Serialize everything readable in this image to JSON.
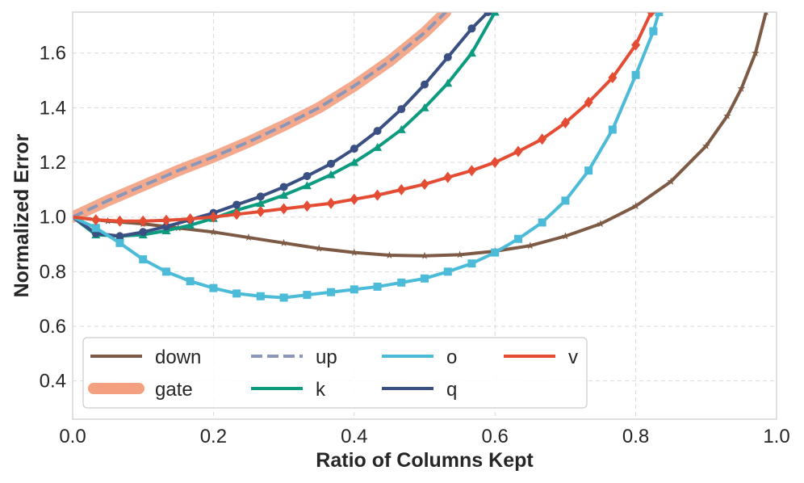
{
  "chart_data": {
    "type": "line",
    "title": "",
    "xlabel": "Ratio of Columns Kept",
    "ylabel": "Normalized Error",
    "xlim": [
      0.0,
      1.0
    ],
    "ylim": [
      0.26,
      1.75
    ],
    "xticks": [
      0.0,
      0.2,
      0.4,
      0.6,
      0.8,
      1.0
    ],
    "xtick_labels": [
      "0.0",
      "0.2",
      "0.4",
      "0.6",
      "0.8",
      "1.0"
    ],
    "yticks": [
      0.4,
      0.6,
      0.8,
      1.0,
      1.2,
      1.4,
      1.6
    ],
    "ytick_labels": [
      "0.4",
      "0.6",
      "0.8",
      "1.0",
      "1.2",
      "1.4",
      "1.6"
    ],
    "grid": true,
    "legend_position": "lower-left",
    "series": [
      {
        "name": "down",
        "color": "#7d5a45",
        "marker": "star",
        "style": "solid",
        "x": [
          0,
          0.05,
          0.1,
          0.15,
          0.2,
          0.25,
          0.3,
          0.35,
          0.4,
          0.45,
          0.5,
          0.55,
          0.6,
          0.65,
          0.7,
          0.75,
          0.8,
          0.85,
          0.9,
          0.93,
          0.95,
          0.97,
          0.985
        ],
        "y": [
          1.0,
          0.985,
          0.975,
          0.96,
          0.945,
          0.925,
          0.905,
          0.885,
          0.87,
          0.86,
          0.858,
          0.862,
          0.875,
          0.895,
          0.93,
          0.975,
          1.04,
          1.13,
          1.26,
          1.37,
          1.47,
          1.6,
          1.75
        ]
      },
      {
        "name": "gate",
        "color": "#f4a080",
        "marker": "none",
        "style": "thick",
        "x": [
          0,
          0.05,
          0.1,
          0.15,
          0.2,
          0.25,
          0.3,
          0.35,
          0.4,
          0.45,
          0.5,
          0.53
        ],
        "y": [
          1.0,
          1.06,
          1.115,
          1.17,
          1.22,
          1.275,
          1.335,
          1.4,
          1.48,
          1.57,
          1.675,
          1.75
        ]
      },
      {
        "name": "up",
        "color": "#8b97b8",
        "marker": "none",
        "style": "dashed",
        "x": [
          0,
          0.05,
          0.1,
          0.15,
          0.2,
          0.25,
          0.3,
          0.35,
          0.4,
          0.45,
          0.5,
          0.53
        ],
        "y": [
          1.0,
          1.06,
          1.115,
          1.17,
          1.22,
          1.275,
          1.335,
          1.4,
          1.48,
          1.57,
          1.675,
          1.75
        ]
      },
      {
        "name": "k",
        "color": "#0d9b80",
        "marker": "triangle",
        "style": "solid",
        "x": [
          0,
          0.033,
          0.067,
          0.1,
          0.133,
          0.167,
          0.2,
          0.233,
          0.267,
          0.3,
          0.333,
          0.367,
          0.4,
          0.433,
          0.467,
          0.5,
          0.533,
          0.567,
          0.6
        ],
        "y": [
          1.0,
          0.935,
          0.93,
          0.935,
          0.95,
          0.97,
          0.995,
          1.025,
          1.05,
          1.08,
          1.115,
          1.155,
          1.2,
          1.255,
          1.32,
          1.4,
          1.49,
          1.6,
          1.75
        ]
      },
      {
        "name": "q",
        "color": "#3a4f82",
        "marker": "circle",
        "style": "solid",
        "x": [
          0,
          0.033,
          0.067,
          0.1,
          0.133,
          0.167,
          0.2,
          0.233,
          0.267,
          0.3,
          0.333,
          0.367,
          0.4,
          0.433,
          0.467,
          0.5,
          0.533,
          0.567,
          0.59
        ],
        "y": [
          1.0,
          0.94,
          0.93,
          0.945,
          0.965,
          0.99,
          1.015,
          1.045,
          1.075,
          1.11,
          1.15,
          1.195,
          1.25,
          1.315,
          1.395,
          1.485,
          1.585,
          1.69,
          1.75
        ]
      },
      {
        "name": "o",
        "color": "#4bbbd8",
        "marker": "square",
        "style": "solid",
        "x": [
          0,
          0.033,
          0.067,
          0.1,
          0.133,
          0.167,
          0.2,
          0.233,
          0.267,
          0.3,
          0.333,
          0.367,
          0.4,
          0.433,
          0.467,
          0.5,
          0.533,
          0.567,
          0.6,
          0.633,
          0.667,
          0.7,
          0.733,
          0.767,
          0.8,
          0.825,
          0.833
        ],
        "y": [
          1.0,
          0.96,
          0.905,
          0.845,
          0.8,
          0.765,
          0.74,
          0.72,
          0.71,
          0.705,
          0.715,
          0.725,
          0.735,
          0.745,
          0.76,
          0.775,
          0.8,
          0.83,
          0.87,
          0.92,
          0.98,
          1.06,
          1.17,
          1.32,
          1.52,
          1.68,
          1.75
        ]
      },
      {
        "name": "v",
        "color": "#e44c33",
        "marker": "diamond",
        "style": "solid",
        "x": [
          0,
          0.033,
          0.067,
          0.1,
          0.133,
          0.167,
          0.2,
          0.233,
          0.267,
          0.3,
          0.333,
          0.367,
          0.4,
          0.433,
          0.467,
          0.5,
          0.533,
          0.567,
          0.6,
          0.633,
          0.667,
          0.7,
          0.733,
          0.767,
          0.8,
          0.822
        ],
        "y": [
          1.0,
          0.99,
          0.985,
          0.985,
          0.988,
          0.993,
          1.0,
          1.01,
          1.02,
          1.03,
          1.04,
          1.05,
          1.065,
          1.08,
          1.1,
          1.12,
          1.145,
          1.17,
          1.2,
          1.24,
          1.285,
          1.345,
          1.42,
          1.51,
          1.63,
          1.75
        ]
      }
    ]
  }
}
